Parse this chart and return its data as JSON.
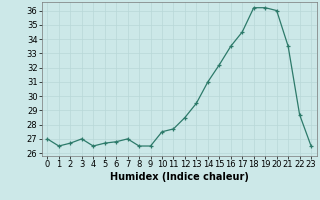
{
  "x": [
    0,
    1,
    2,
    3,
    4,
    5,
    6,
    7,
    8,
    9,
    10,
    11,
    12,
    13,
    14,
    15,
    16,
    17,
    18,
    19,
    20,
    21,
    22,
    23
  ],
  "y": [
    27.0,
    26.5,
    26.7,
    27.0,
    26.5,
    26.7,
    26.8,
    27.0,
    26.5,
    26.5,
    27.5,
    27.7,
    28.5,
    29.5,
    31.0,
    32.2,
    33.5,
    34.5,
    36.2,
    36.2,
    36.0,
    33.5,
    28.7,
    26.5
  ],
  "xlabel": "Humidex (Indice chaleur)",
  "ylabel": "",
  "xlim": [
    -0.5,
    23.5
  ],
  "ylim": [
    25.8,
    36.6
  ],
  "yticks": [
    26,
    27,
    28,
    29,
    30,
    31,
    32,
    33,
    34,
    35,
    36
  ],
  "xticks": [
    0,
    1,
    2,
    3,
    4,
    5,
    6,
    7,
    8,
    9,
    10,
    11,
    12,
    13,
    14,
    15,
    16,
    17,
    18,
    19,
    20,
    21,
    22,
    23
  ],
  "line_color": "#2d7a6a",
  "bg_color": "#cce8e8",
  "grid_major_color": "#b8d8d8",
  "grid_minor_color": "#d0e8e8",
  "label_fontsize": 7,
  "tick_fontsize": 6
}
